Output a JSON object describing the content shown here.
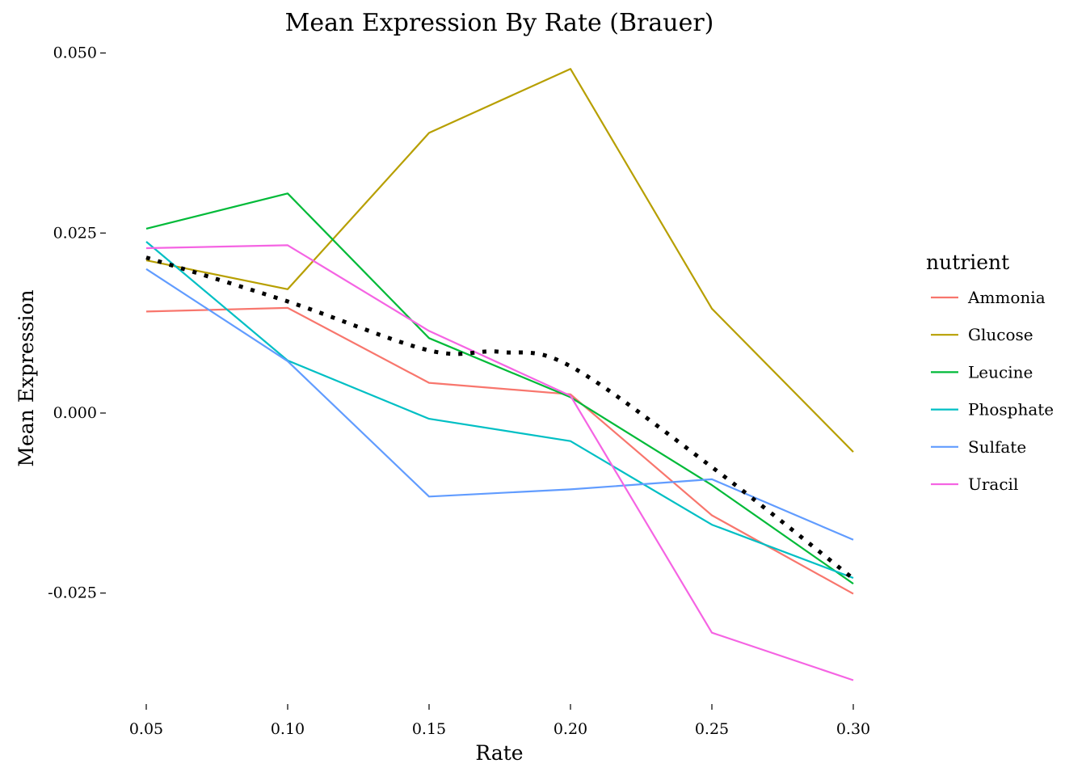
{
  "chart_data": {
    "type": "line",
    "title": "Mean Expression By Rate (Brauer)",
    "xlabel": "Rate",
    "ylabel": "Mean Expression",
    "x": [
      0.05,
      0.1,
      0.15,
      0.2,
      0.25,
      0.3
    ],
    "x_tick_labels": [
      "0.05",
      "0.10",
      "0.15",
      "0.20",
      "0.25",
      "0.30"
    ],
    "y_ticks": [
      -0.025,
      0.0,
      0.025,
      0.05
    ],
    "y_tick_labels": [
      "-0.025",
      "0.000",
      "0.025",
      "0.050"
    ],
    "xlim": [
      0.036,
      0.314
    ],
    "ylim": [
      -0.0403,
      0.0504
    ],
    "grid": false,
    "legend": {
      "title": "nutrient",
      "placement": "right"
    },
    "series": [
      {
        "name": "Ammonia",
        "color": "#F8766D",
        "values": [
          0.0141,
          0.0146,
          0.0042,
          0.0026,
          -0.0142,
          -0.0251
        ]
      },
      {
        "name": "Glucose",
        "color": "#B79F00",
        "values": [
          0.0212,
          0.0172,
          0.0389,
          0.0478,
          0.0145,
          -0.0054
        ]
      },
      {
        "name": "Leucine",
        "color": "#00BA38",
        "values": [
          0.0256,
          0.0305,
          0.0104,
          0.0022,
          -0.01,
          -0.0237
        ]
      },
      {
        "name": "Phosphate",
        "color": "#00BFC4",
        "values": [
          0.0238,
          0.0073,
          -0.0008,
          -0.0039,
          -0.0155,
          -0.0229
        ]
      },
      {
        "name": "Sulfate",
        "color": "#619CFF",
        "values": [
          0.02,
          0.0072,
          -0.0116,
          -0.0106,
          -0.0092,
          -0.0176
        ]
      },
      {
        "name": "Uracil",
        "color": "#F564E3",
        "values": [
          0.0229,
          0.0233,
          0.0114,
          0.0024,
          -0.0305,
          -0.0371
        ]
      }
    ],
    "smooth": {
      "color": "#000000",
      "style": "dotted",
      "x": [
        0.05,
        0.1,
        0.15,
        0.175,
        0.2,
        0.25,
        0.3
      ],
      "values": [
        0.0216,
        0.0155,
        0.0087,
        0.0085,
        0.0065,
        -0.0075,
        -0.023
      ]
    }
  }
}
